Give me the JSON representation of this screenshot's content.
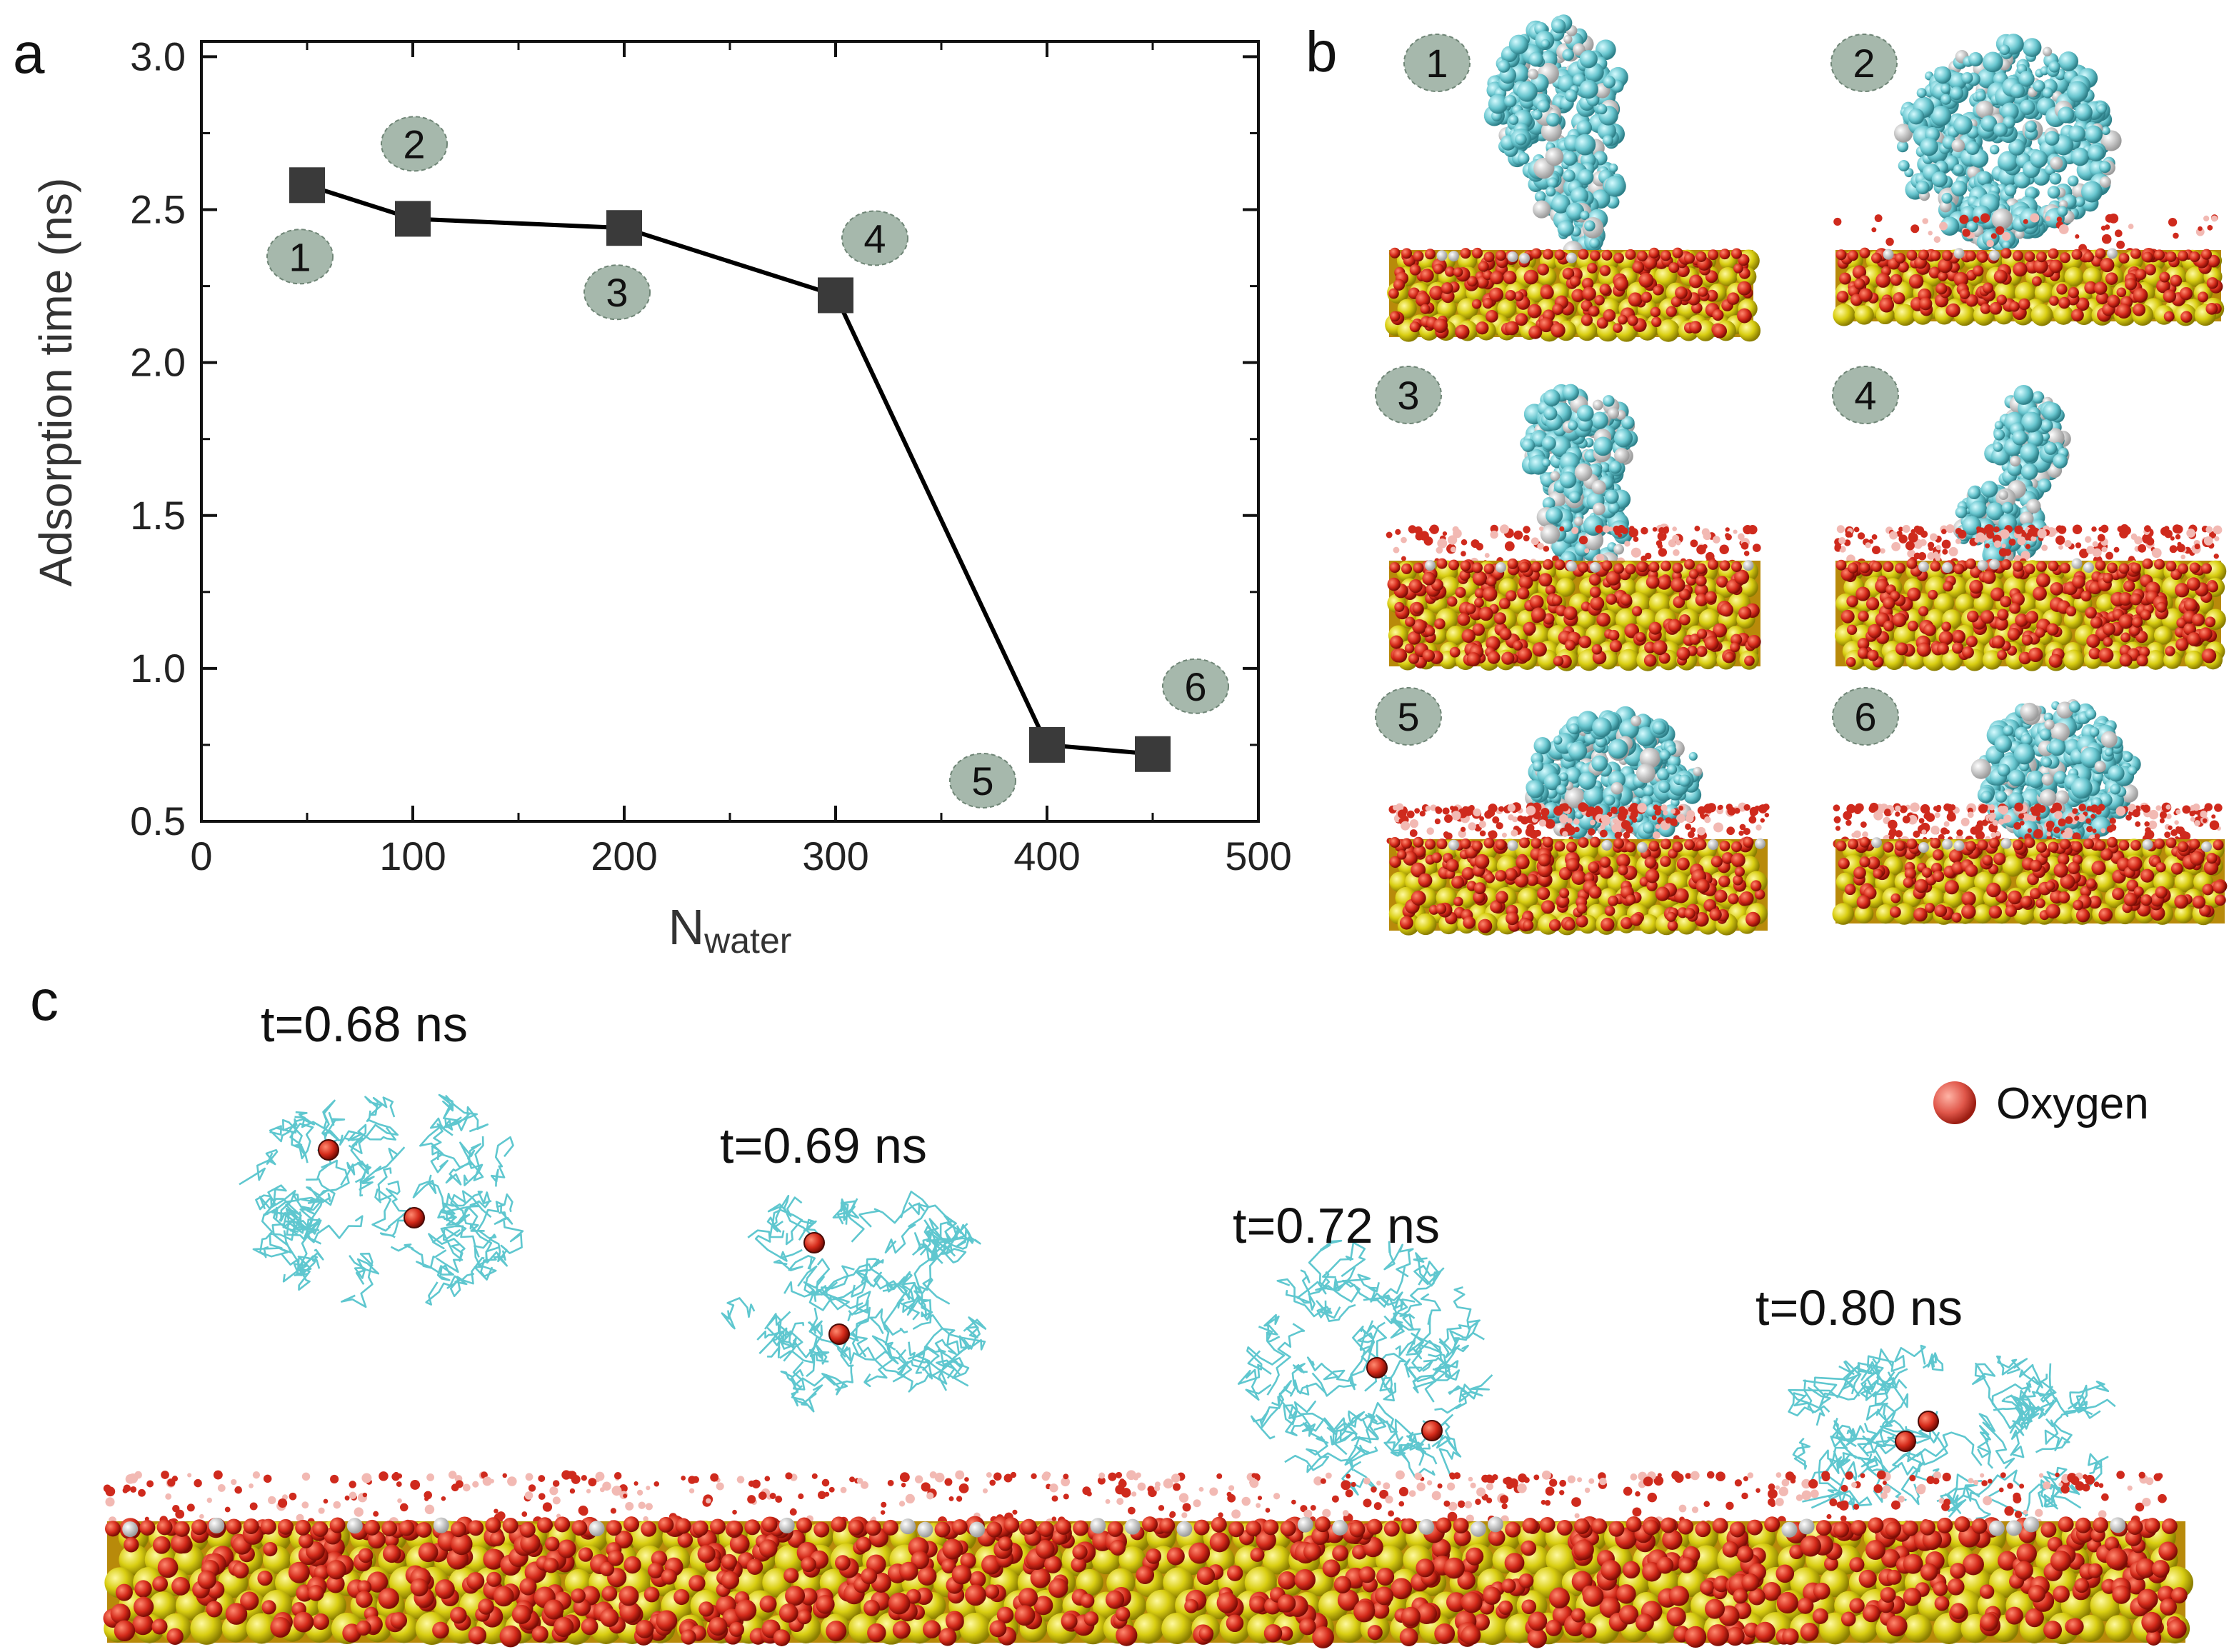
{
  "panels": {
    "a": "a",
    "b": "b",
    "c": "c"
  },
  "chart_data": {
    "type": "line",
    "xlabel_main": "N",
    "xlabel_sub": "water",
    "ylabel": "Adsorption time (ns)",
    "xlim": [
      0,
      500
    ],
    "ylim": [
      0.5,
      3.05
    ],
    "x_ticks": [
      0,
      100,
      200,
      300,
      400,
      500
    ],
    "y_ticks": [
      0.5,
      1.0,
      1.5,
      2.0,
      2.5,
      3.0
    ],
    "x_tick_labels": [
      "0",
      "100",
      "200",
      "300",
      "400",
      "500"
    ],
    "y_tick_labels": [
      "0.5",
      "1.0",
      "1.5",
      "2.0",
      "2.5",
      "3.0"
    ],
    "grid": false,
    "x": [
      50,
      100,
      200,
      300,
      400,
      450
    ],
    "y": [
      2.58,
      2.47,
      2.44,
      2.22,
      0.75,
      0.72
    ],
    "point_labels": [
      "1",
      "2",
      "3",
      "4",
      "5",
      "6"
    ],
    "line_color": "#000000",
    "marker_color": "#3a3a3a"
  },
  "snapshots_b": [
    "1",
    "2",
    "3",
    "4",
    "5",
    "6"
  ],
  "panel_c": {
    "times": [
      "t=0.68 ns",
      "t=0.69 ns",
      "t=0.72 ns",
      "t=0.80 ns"
    ],
    "legend_label": "Oxygen"
  },
  "colors": {
    "badge_fill": "#a6b8ac",
    "protein": "#5fc7cf",
    "silicon": "#d7cc10",
    "oxygen": "#d42a1a",
    "hydrogen": "#dddddd"
  }
}
